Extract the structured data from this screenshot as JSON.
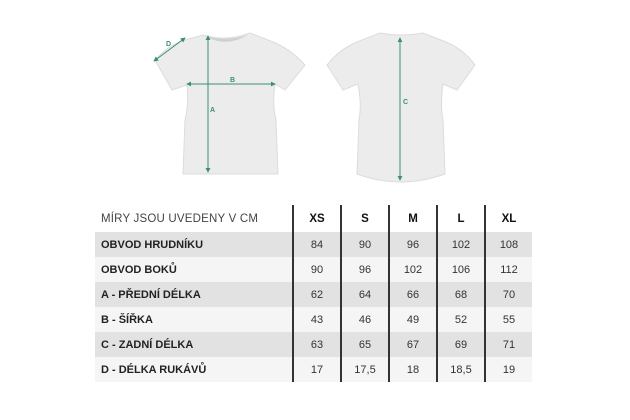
{
  "diagram": {
    "labels": {
      "a": "A",
      "b": "B",
      "c": "C",
      "d": "D"
    },
    "colors": {
      "shirt": "#ececec",
      "outline": "#dcdcdc",
      "arrow": "#3a8f75"
    }
  },
  "table": {
    "header": "MÍRY JSOU UVEDENY V CM",
    "sizes": [
      "XS",
      "S",
      "M",
      "L",
      "XL"
    ],
    "rows": [
      {
        "label": "OBVOD HRUDNÍKU",
        "values": [
          "84",
          "90",
          "96",
          "102",
          "108"
        ]
      },
      {
        "label": "OBVOD BOKŮ",
        "values": [
          "90",
          "96",
          "102",
          "106",
          "112"
        ]
      },
      {
        "label": "A - PŘEDNÍ DÉLKA",
        "values": [
          "62",
          "64",
          "66",
          "68",
          "70"
        ]
      },
      {
        "label": "B - ŠÍŘKA",
        "values": [
          "43",
          "46",
          "49",
          "52",
          "55"
        ]
      },
      {
        "label": "C - ZADNÍ DÉLKA",
        "values": [
          "63",
          "65",
          "67",
          "69",
          "71"
        ]
      },
      {
        "label": "D - DÉLKA RUKÁVŮ",
        "values": [
          "17",
          "17,5",
          "18",
          "18,5",
          "19"
        ]
      }
    ]
  }
}
